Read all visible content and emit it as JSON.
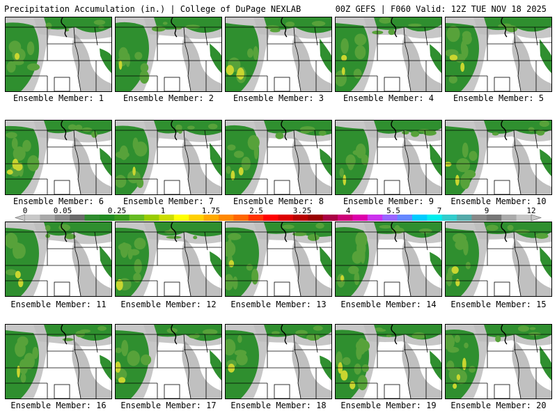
{
  "header": {
    "left": "Precipitation Accumulation (in.) | College of DuPage NEXLAB",
    "right": "00Z GEFS | F060 Valid: 12Z TUE NOV 18 2025"
  },
  "panels": [
    {
      "member": 1,
      "label": "Ensemble Member: 1"
    },
    {
      "member": 2,
      "label": "Ensemble Member: 2"
    },
    {
      "member": 3,
      "label": "Ensemble Member: 3"
    },
    {
      "member": 4,
      "label": "Ensemble Member: 4"
    },
    {
      "member": 5,
      "label": "Ensemble Member: 5"
    },
    {
      "member": 6,
      "label": "Ensemble Member: 6"
    },
    {
      "member": 7,
      "label": "Ensemble Member: 7"
    },
    {
      "member": 8,
      "label": "Ensemble Member: 8"
    },
    {
      "member": 9,
      "label": "Ensemble Member: 9"
    },
    {
      "member": 10,
      "label": "Ensemble Member: 10"
    },
    {
      "member": 11,
      "label": "Ensemble Member: 11"
    },
    {
      "member": 12,
      "label": "Ensemble Member: 12"
    },
    {
      "member": 13,
      "label": "Ensemble Member: 13"
    },
    {
      "member": 14,
      "label": "Ensemble Member: 14"
    },
    {
      "member": 15,
      "label": "Ensemble Member: 15"
    },
    {
      "member": 16,
      "label": "Ensemble Member: 16"
    },
    {
      "member": 17,
      "label": "Ensemble Member: 17"
    },
    {
      "member": 18,
      "label": "Ensemble Member: 18"
    },
    {
      "member": 19,
      "label": "Ensemble Member: 19"
    },
    {
      "member": 20,
      "label": "Ensemble Member: 20"
    }
  ],
  "colorbar": {
    "tick_labels": [
      "0",
      "0.05",
      "0.25",
      "1",
      "1.75",
      "2.5",
      "3.25",
      "4",
      "5.5",
      "7",
      "9",
      "12"
    ],
    "colors": [
      "#c8c8c8",
      "#a8a8a8",
      "#8a8a8a",
      "#6a6a6a",
      "#2e8b2e",
      "#228b22",
      "#3a9a1e",
      "#66bb22",
      "#99cc00",
      "#ccdd00",
      "#ffff00",
      "#ffd000",
      "#ffaa00",
      "#ff8800",
      "#ff6600",
      "#ff3300",
      "#ff0000",
      "#dd0000",
      "#b80000",
      "#990000",
      "#aa0044",
      "#cc0077",
      "#dd00aa",
      "#cc33ee",
      "#9966ff",
      "#6688ff",
      "#00ccff",
      "#00eeee",
      "#33cccc",
      "#55aaaa",
      "#888888",
      "#777777",
      "#aaaaaa",
      "#c8c8c8"
    ]
  },
  "shading": {
    "green": "#2f8f2f",
    "green_light": "#57a23a",
    "yellow_green": "#c9d630",
    "gray": "#bdbdbd",
    "gray_dark": "#8c8c8c"
  }
}
